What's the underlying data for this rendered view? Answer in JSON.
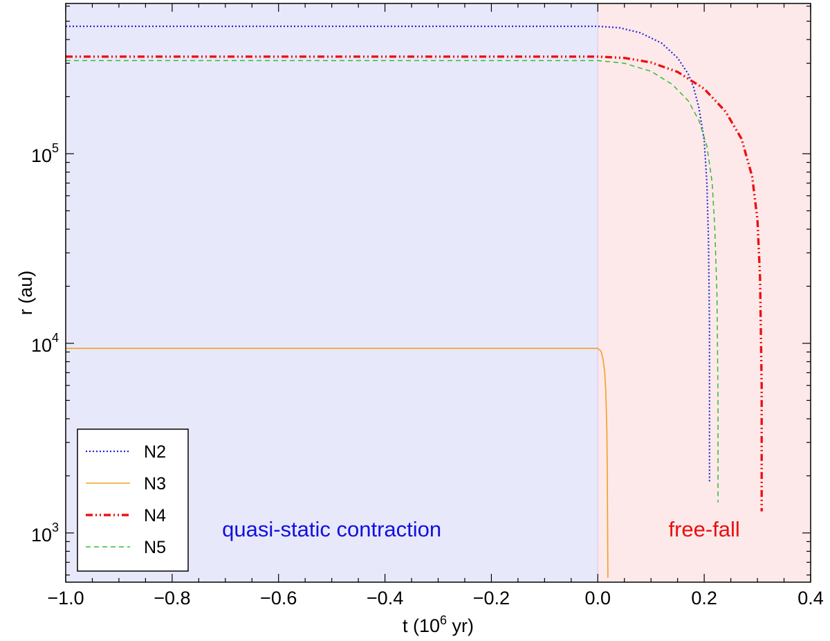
{
  "chart_data": {
    "type": "line",
    "title": "",
    "xlabel_main": "t (10",
    "xlabel_sup": "6",
    "xlabel_tail": "  yr)",
    "ylabel": "r (au)",
    "xlim": [
      -1.0,
      0.4
    ],
    "ylim": [
      550,
      620000
    ],
    "yscale": "log",
    "grid": false,
    "legend_position": "lower-left",
    "x_ticks": [
      -1.0,
      -0.8,
      -0.6,
      -0.4,
      -0.2,
      0.0,
      0.2,
      0.4
    ],
    "x_tick_labels": [
      "−1.0",
      "−0.8",
      "−0.6",
      "−0.4",
      "−0.2",
      "0.0",
      "0.2",
      "0.4"
    ],
    "y_ticks": [
      1000,
      10000,
      100000
    ],
    "y_tick_labels": [
      {
        "base": "10",
        "exp": "3"
      },
      {
        "base": "10",
        "exp": "4"
      },
      {
        "base": "10",
        "exp": "5"
      }
    ],
    "regions": [
      {
        "label": "quasi-static contraction",
        "x_range": [
          -1.0,
          0.0
        ],
        "fill": "#e8e8fb",
        "text_color": "#1010e0"
      },
      {
        "label": "free-fall",
        "x_range": [
          0.0,
          0.4
        ],
        "fill": "#fde9ea",
        "text_color": "#e81010"
      }
    ],
    "series": [
      {
        "name": "N2",
        "color": "#2525d8",
        "dash": "2,3",
        "width": 2.2,
        "x": [
          -1.0,
          0.0,
          0.04,
          0.08,
          0.12,
          0.15,
          0.17,
          0.18,
          0.19,
          0.2,
          0.205,
          0.208,
          0.21,
          0.21
        ],
        "y": [
          470000,
          470000,
          462000,
          434000,
          383000,
          320000,
          263000,
          224000,
          175000,
          118000,
          70000,
          35000,
          12000,
          1850
        ]
      },
      {
        "name": "N3",
        "color": "#f0a020",
        "dash": "",
        "width": 1.6,
        "x": [
          -1.0,
          0.0,
          0.006,
          0.01,
          0.013,
          0.015,
          0.017,
          0.018,
          0.019
        ],
        "y": [
          9400,
          9400,
          9100,
          8200,
          7000,
          5600,
          3500,
          1900,
          580
        ]
      },
      {
        "name": "N4",
        "color": "#ee1010",
        "dash": "10,4,2,4,2,4",
        "width": 3.4,
        "x": [
          -1.0,
          0.0,
          0.05,
          0.1,
          0.15,
          0.2,
          0.24,
          0.27,
          0.29,
          0.3,
          0.305,
          0.308,
          0.308
        ],
        "y": [
          325000,
          325000,
          320000,
          303000,
          270000,
          220000,
          167000,
          120000,
          76000,
          45000,
          22000,
          6000,
          1300
        ]
      },
      {
        "name": "N5",
        "color": "#33bb33",
        "dash": "7,5",
        "width": 1.5,
        "x": [
          -1.0,
          0.0,
          0.05,
          0.1,
          0.14,
          0.17,
          0.19,
          0.205,
          0.215,
          0.22,
          0.224,
          0.226,
          0.226
        ],
        "y": [
          310000,
          310000,
          300000,
          272000,
          232000,
          190000,
          150000,
          110000,
          70000,
          40000,
          18000,
          5000,
          1450
        ]
      }
    ]
  }
}
